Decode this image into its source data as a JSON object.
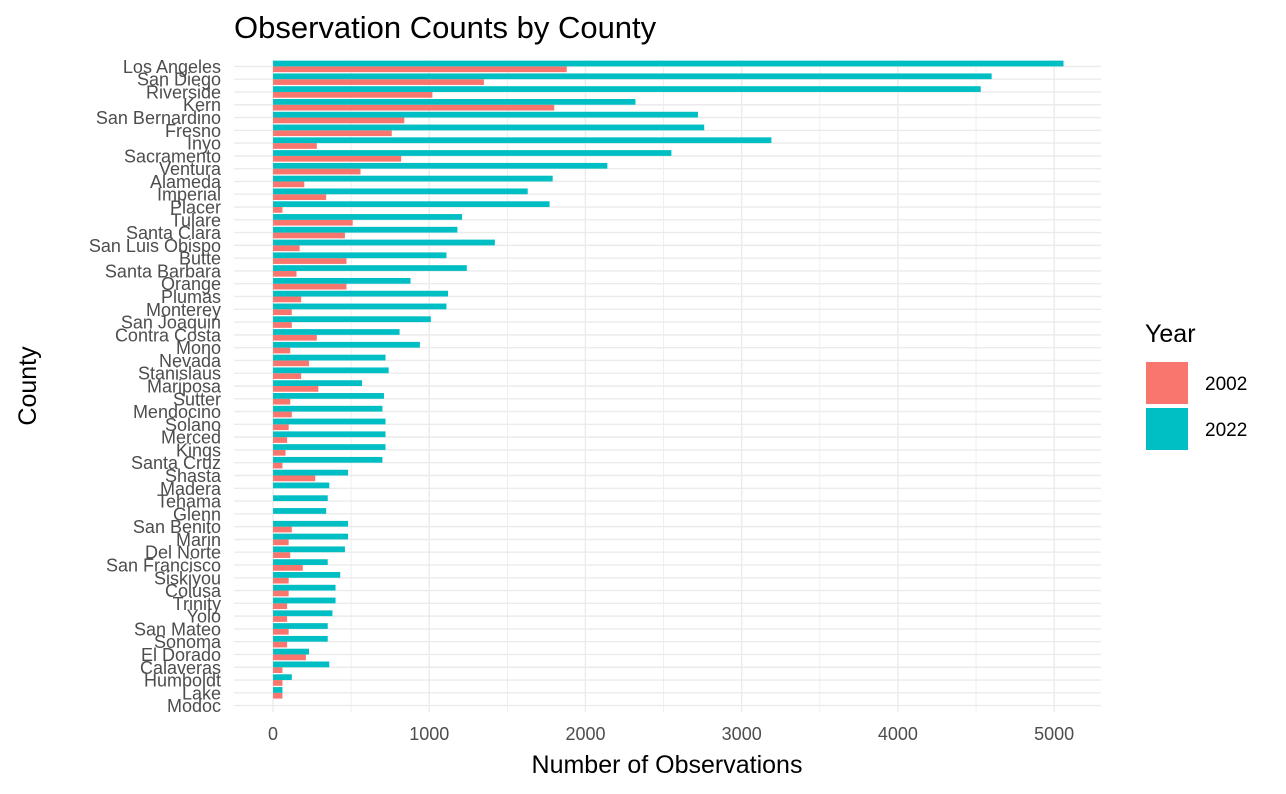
{
  "chart_data": {
    "type": "bar",
    "orientation": "horizontal",
    "title": "Observation Counts by County",
    "xlabel": "Number of Observations",
    "ylabel": "County",
    "xlim": [
      -250,
      5300
    ],
    "xticks": [
      0,
      1000,
      2000,
      3000,
      4000,
      5000
    ],
    "grid": true,
    "legend": {
      "title": "Year",
      "position": "right"
    },
    "categories": [
      "Los Angeles",
      "San Diego",
      "Riverside",
      "Kern",
      "San Bernardino",
      "Fresno",
      "Inyo",
      "Sacramento",
      "Ventura",
      "Alameda",
      "Imperial",
      "Placer",
      "Tulare",
      "Santa Clara",
      "San Luis Obispo",
      "Butte",
      "Santa Barbara",
      "Orange",
      "Plumas",
      "Monterey",
      "San Joaquin",
      "Contra Costa",
      "Mono",
      "Nevada",
      "Stanislaus",
      "Mariposa",
      "Sutter",
      "Mendocino",
      "Solano",
      "Merced",
      "Kings",
      "Santa Cruz",
      "Shasta",
      "Madera",
      "Tehama",
      "Glenn",
      "San Benito",
      "Marin",
      "Del Norte",
      "San Francisco",
      "Siskiyou",
      "Colusa",
      "Trinity",
      "Yolo",
      "San Mateo",
      "Sonoma",
      "El Dorado",
      "Calaveras",
      "Humboldt",
      "Lake",
      "Modoc"
    ],
    "series": [
      {
        "name": "2002",
        "color": "#F8766D",
        "values": [
          1880,
          1350,
          1020,
          1800,
          840,
          760,
          280,
          820,
          560,
          200,
          340,
          60,
          510,
          460,
          170,
          470,
          150,
          470,
          180,
          120,
          120,
          280,
          110,
          230,
          180,
          290,
          110,
          120,
          100,
          90,
          80,
          60,
          270,
          0,
          0,
          0,
          120,
          100,
          110,
          190,
          100,
          100,
          90,
          90,
          100,
          90,
          210,
          60,
          60,
          60,
          0
        ]
      },
      {
        "name": "2022",
        "color": "#00BFC4",
        "values": [
          5060,
          4600,
          4530,
          2320,
          2720,
          2760,
          3190,
          2550,
          2140,
          1790,
          1630,
          1770,
          1210,
          1180,
          1420,
          1110,
          1240,
          880,
          1120,
          1110,
          1010,
          810,
          940,
          720,
          740,
          570,
          710,
          700,
          720,
          720,
          720,
          700,
          480,
          360,
          350,
          340,
          480,
          480,
          460,
          350,
          430,
          400,
          400,
          380,
          350,
          350,
          230,
          360,
          120,
          60,
          0
        ]
      }
    ]
  }
}
